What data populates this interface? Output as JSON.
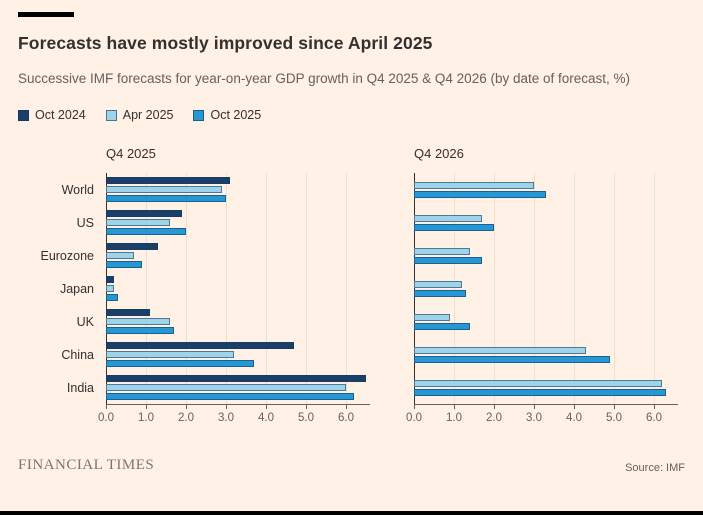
{
  "page": {
    "title": "Forecasts have mostly improved since April 2025",
    "subtitle": "Successive IMF forecasts for year-on-year GDP growth in Q4 2025 & Q4 2026 (by date of forecast, %)",
    "footer_brand": "FINANCIAL TIMES",
    "source": "Source: IMF"
  },
  "colors": {
    "background": "#FFF1E5",
    "oct2024": "#1A3F69",
    "apr2025": "#9ED4EA",
    "oct2025": "#2597D4"
  },
  "legend": [
    {
      "label": "Oct 2024",
      "color_key": "oct2024"
    },
    {
      "label": "Apr 2025",
      "color_key": "apr2025"
    },
    {
      "label": "Oct 2025",
      "color_key": "oct2025"
    }
  ],
  "chart_data": [
    {
      "type": "bar",
      "orientation": "horizontal",
      "title": "Q4 2025",
      "categories": [
        "World",
        "US",
        "Eurozone",
        "Japan",
        "UK",
        "China",
        "India"
      ],
      "series": [
        {
          "name": "Oct 2024",
          "color_key": "oct2024",
          "values": [
            3.1,
            1.9,
            1.3,
            0.2,
            1.1,
            4.7,
            6.5
          ]
        },
        {
          "name": "Apr 2025",
          "color_key": "apr2025",
          "values": [
            2.9,
            1.6,
            0.7,
            0.2,
            1.6,
            3.2,
            6.0
          ]
        },
        {
          "name": "Oct 2025",
          "color_key": "oct2025",
          "values": [
            3.0,
            2.0,
            0.9,
            0.3,
            1.7,
            3.7,
            6.2
          ]
        }
      ],
      "xlim": [
        0,
        6.6
      ],
      "ticks": [
        0,
        1,
        2,
        3,
        4,
        5,
        6
      ],
      "tick_labels": [
        "0.0",
        "1.0",
        "2.0",
        "3.0",
        "4.0",
        "5.0",
        "6.0"
      ],
      "grid": true,
      "legend_position": "top",
      "show_category_labels": true
    },
    {
      "type": "bar",
      "orientation": "horizontal",
      "title": "Q4 2026",
      "categories": [
        "World",
        "US",
        "Eurozone",
        "Japan",
        "UK",
        "China",
        "India"
      ],
      "series": [
        {
          "name": "Apr 2025",
          "color_key": "apr2025",
          "values": [
            3.0,
            1.7,
            1.4,
            1.2,
            0.9,
            4.3,
            6.2
          ]
        },
        {
          "name": "Oct 2025",
          "color_key": "oct2025",
          "values": [
            3.3,
            2.0,
            1.7,
            1.3,
            1.4,
            4.9,
            6.3
          ]
        }
      ],
      "xlim": [
        0,
        6.6
      ],
      "ticks": [
        0,
        1,
        2,
        3,
        4,
        5,
        6
      ],
      "tick_labels": [
        "0.0",
        "1.0",
        "2.0",
        "3.0",
        "4.0",
        "5.0",
        "6.0"
      ],
      "grid": true,
      "legend_position": "top",
      "show_category_labels": false
    }
  ]
}
